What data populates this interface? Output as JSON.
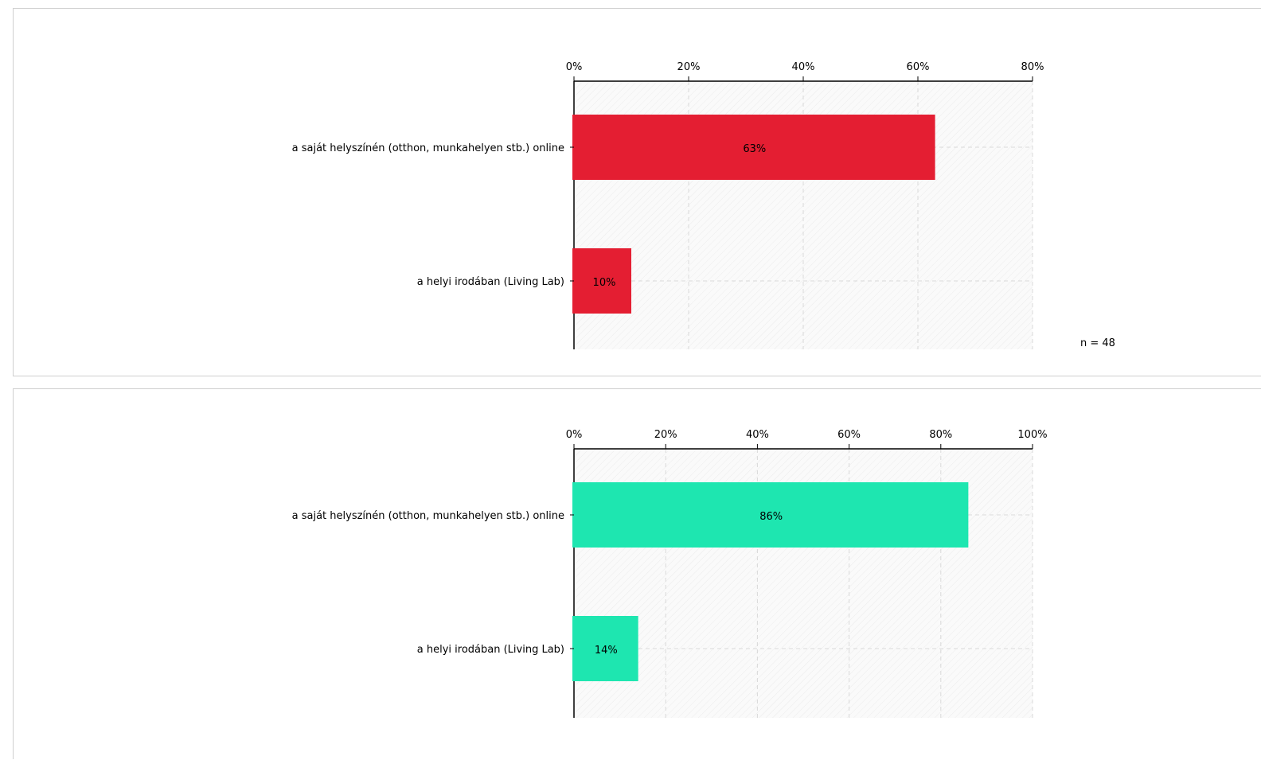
{
  "chart_data": [
    {
      "type": "bar",
      "orientation": "horizontal",
      "categories": [
        "a saját helyszínén (otthon, munkahelyen stb.) online",
        "a helyi irodában (Living Lab)"
      ],
      "values": [
        63,
        10
      ],
      "value_labels": [
        "63%",
        "10%"
      ],
      "xlim": [
        0,
        80
      ],
      "ticks": [
        "0%",
        "20%",
        "40%",
        "60%",
        "80%"
      ],
      "color": "#e41e32",
      "note": "n = 48",
      "grid": true
    },
    {
      "type": "bar",
      "orientation": "horizontal",
      "categories": [
        "a saját helyszínén (otthon, munkahelyen stb.) online",
        "a helyi irodában (Living Lab)"
      ],
      "values": [
        86,
        14
      ],
      "value_labels": [
        "86%",
        "14%"
      ],
      "xlim": [
        0,
        100
      ],
      "ticks": [
        "0%",
        "20%",
        "40%",
        "60%",
        "80%",
        "100%"
      ],
      "color": "#1ee6b0",
      "grid": true
    }
  ]
}
